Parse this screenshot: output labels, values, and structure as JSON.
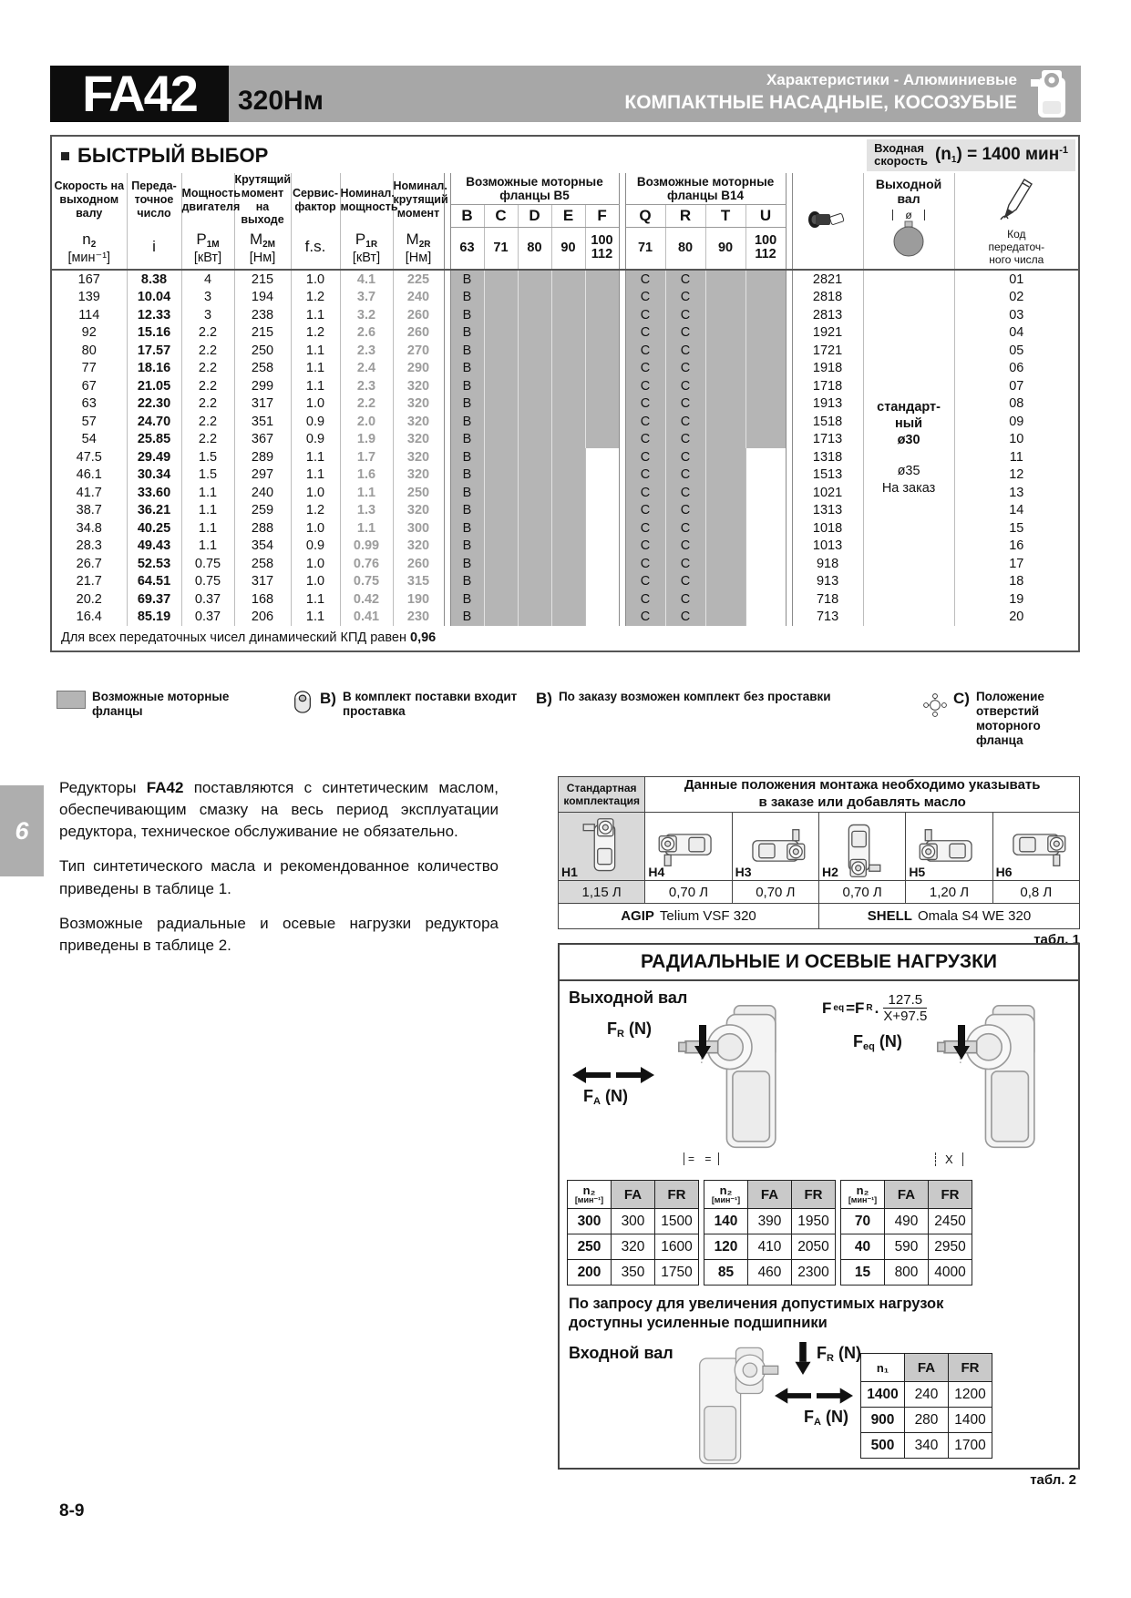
{
  "header": {
    "model": "FA42",
    "torque": "320Нм",
    "subtitle1": "Характеристики - Алюминиевые",
    "subtitle2": "КОМПАКТНЫЕ НАСАДНЫЕ, КОСОЗУБЫЕ"
  },
  "quick_select": {
    "title": "БЫСТРЫЙ ВЫБОР",
    "input_speed": {
      "label1": "Входная",
      "label2": "скорость",
      "pre": "(n",
      "sub": "1",
      "mid": ") = 1400 мин",
      "sup": "-1"
    },
    "columns": [
      {
        "label": "Скорость на\nвыходном\nвалу",
        "sym": "n",
        "sub": "2",
        "unit": "[мин⁻¹]"
      },
      {
        "label": "Переда-\nточное\nчисло",
        "sym": "i",
        "sub": "",
        "unit": ""
      },
      {
        "label": "Мощность\nдвигателя",
        "sym": "P",
        "sub": "1M",
        "unit": "[кВт]"
      },
      {
        "label": "Крутящий\nмомент на\nвыходе",
        "sym": "M",
        "sub": "2M",
        "unit": "[Нм]"
      },
      {
        "label": "Сервис-\nфактор",
        "sym": "f.s.",
        "sub": "",
        "unit": ""
      },
      {
        "label": "Номинал.\nмощность",
        "sym": "P",
        "sub": "1R",
        "unit": "[кВт]"
      },
      {
        "label": "Номинал.\nкрутящий\nмомент",
        "sym": "M",
        "sub": "2R",
        "unit": "[Нм]"
      }
    ],
    "b5": {
      "title": "Возможные моторные\nфланцы B5",
      "letters": [
        "B",
        "C",
        "D",
        "E",
        "F"
      ],
      "sizes": [
        "63",
        "71",
        "80",
        "90",
        "100\n112"
      ]
    },
    "b14": {
      "title": "Возможные моторные\nфланцы B14",
      "letters": [
        "Q",
        "R",
        "T",
        "U"
      ],
      "sizes": [
        "71",
        "80",
        "90",
        "100\n112"
      ]
    },
    "output_shaft": {
      "header": "Выходной вал",
      "diameter_symbol": "ø",
      "lines": [
        {
          "text": "стандарт-",
          "bold": true
        },
        {
          "text": "ный",
          "bold": true
        },
        {
          "text": "ø30",
          "bold": true
        },
        {
          "text": "",
          "bold": false
        },
        {
          "text": "ø35",
          "bold": false
        },
        {
          "text": "На заказ",
          "bold": false
        }
      ]
    },
    "code_header": "Код\nпередаточ-\nного числа",
    "row_marks": {
      "b5": "B",
      "b14": [
        "C",
        "C"
      ]
    },
    "rows": [
      [
        "167",
        "8.38",
        "4",
        "215",
        "1.0",
        "4.1",
        "225",
        "2821",
        "01"
      ],
      [
        "139",
        "10.04",
        "3",
        "194",
        "1.2",
        "3.7",
        "240",
        "2818",
        "02"
      ],
      [
        "114",
        "12.33",
        "3",
        "238",
        "1.1",
        "3.2",
        "260",
        "2813",
        "03"
      ],
      [
        "92",
        "15.16",
        "2.2",
        "215",
        "1.2",
        "2.6",
        "260",
        "1921",
        "04"
      ],
      [
        "80",
        "17.57",
        "2.2",
        "250",
        "1.1",
        "2.3",
        "270",
        "1721",
        "05"
      ],
      [
        "77",
        "18.16",
        "2.2",
        "258",
        "1.1",
        "2.4",
        "290",
        "1918",
        "06"
      ],
      [
        "67",
        "21.05",
        "2.2",
        "299",
        "1.1",
        "2.3",
        "320",
        "1718",
        "07"
      ],
      [
        "63",
        "22.30",
        "2.2",
        "317",
        "1.0",
        "2.2",
        "320",
        "1913",
        "08"
      ],
      [
        "57",
        "24.70",
        "2.2",
        "351",
        "0.9",
        "2.0",
        "320",
        "1518",
        "09"
      ],
      [
        "54",
        "25.85",
        "2.2",
        "367",
        "0.9",
        "1.9",
        "320",
        "1713",
        "10"
      ],
      [
        "47.5",
        "29.49",
        "1.5",
        "289",
        "1.1",
        "1.7",
        "320",
        "1318",
        "11"
      ],
      [
        "46.1",
        "30.34",
        "1.5",
        "297",
        "1.1",
        "1.6",
        "320",
        "1513",
        "12"
      ],
      [
        "41.7",
        "33.60",
        "1.1",
        "240",
        "1.0",
        "1.1",
        "250",
        "1021",
        "13"
      ],
      [
        "38.7",
        "36.21",
        "1.1",
        "259",
        "1.2",
        "1.3",
        "320",
        "1313",
        "14"
      ],
      [
        "34.8",
        "40.25",
        "1.1",
        "288",
        "1.0",
        "1.1",
        "300",
        "1018",
        "15"
      ],
      [
        "28.3",
        "49.43",
        "1.1",
        "354",
        "0.9",
        "0.99",
        "320",
        "1013",
        "16"
      ],
      [
        "26.7",
        "52.53",
        "0.75",
        "258",
        "1.0",
        "0.76",
        "260",
        "918",
        "17"
      ],
      [
        "21.7",
        "64.51",
        "0.75",
        "317",
        "1.0",
        "0.75",
        "315",
        "913",
        "18"
      ],
      [
        "20.2",
        "69.37",
        "0.37",
        "168",
        "1.1",
        "0.42",
        "190",
        "718",
        "19"
      ],
      [
        "16.4",
        "85.19",
        "0.37",
        "206",
        "1.1",
        "0.41",
        "230",
        "713",
        "20"
      ]
    ],
    "footnote": {
      "text": "Для всех передаточных чисел динамический КПД равен ",
      "value": "0,96"
    }
  },
  "legend": {
    "item1": "Возможные моторные\nфланцы",
    "item2_prefix": "B)",
    "item2": "В комплект поставки входит\nпроставка",
    "item3_prefix": "B)",
    "item3": "По заказу возможен комплект без проставки",
    "item4_prefix": "C)",
    "item4": "Положение отверстий\nмоторного фланца"
  },
  "section_tab": "6",
  "paragraphs": {
    "p1a": "Редукторы ",
    "p1b": "FA42",
    "p1c": " поставляются с синтетическим маслом, обеспечивающим смазку на весь период эксплуатации редуктора, техническое обслуживание не обязательно.",
    "p2": "Тип синтетического масла и рекомендованное количество приведены в таблице 1.",
    "p3": "Возможные радиальные и осевые нагрузки редуктора приведены в таблице 2."
  },
  "table1": {
    "header_left": "Стандартная\nкомплектация",
    "header_right": "Данные положения монтажа необходимо указывать\nв заказе или добавлять масло",
    "positions": [
      {
        "name": "H1",
        "oil": "1,15 Л"
      },
      {
        "name": "H4",
        "oil": "0,70 Л"
      },
      {
        "name": "H3",
        "oil": "0,70 Л"
      },
      {
        "name": "H2",
        "oil": "0,70 Л"
      },
      {
        "name": "H5",
        "oil": "1,20 Л"
      },
      {
        "name": "H6",
        "oil": "0,8 Л"
      }
    ],
    "oil_left_brand": "AGIP",
    "oil_left_name": "Telium VSF 320",
    "oil_right_brand": "SHELL",
    "oil_right_name": "Omala S4 WE 320",
    "caption": "табл. 1"
  },
  "loads": {
    "title": "РАДИАЛЬНЫЕ И ОСЕВЫЕ НАГРУЗКИ",
    "output_label": "Выходной вал",
    "formula": {
      "f1": "F",
      "s1": "eq",
      "f2": "=F",
      "s2": "R",
      "dot": ".",
      "num": "127.5",
      "den": "X+97.5"
    },
    "fr": {
      "m": "F",
      "s": "R",
      "u": "(N)"
    },
    "fa": {
      "m": "F",
      "s": "A",
      "u": "(N)"
    },
    "feq": {
      "m": "F",
      "s": "eq",
      "u": "(N)"
    },
    "x_label": "X",
    "eq_marks": "= =",
    "table_header": {
      "n": "n₂",
      "nu": "[мин⁻¹]",
      "fa": "FA",
      "fr": "FR"
    },
    "output_tables": [
      {
        "rows": [
          [
            "300",
            "300",
            "1500"
          ],
          [
            "250",
            "320",
            "1600"
          ],
          [
            "200",
            "350",
            "1750"
          ]
        ]
      },
      {
        "rows": [
          [
            "140",
            "390",
            "1950"
          ],
          [
            "120",
            "410",
            "2050"
          ],
          [
            "85",
            "460",
            "2300"
          ]
        ]
      },
      {
        "rows": [
          [
            "70",
            "490",
            "2450"
          ],
          [
            "40",
            "590",
            "2950"
          ],
          [
            "15",
            "800",
            "4000"
          ]
        ]
      }
    ],
    "note": "По запросу для увеличения допустимых нагрузок\nдоступны усиленные подшипники",
    "input_label": "Входной вал",
    "input_header": {
      "n": "n₁",
      "fa": "FA",
      "fr": "FR"
    },
    "input_rows": [
      [
        "1400",
        "240",
        "1200"
      ],
      [
        "900",
        "280",
        "1400"
      ],
      [
        "500",
        "340",
        "1700"
      ]
    ],
    "caption": "табл. 2"
  },
  "page_number": "8-9"
}
